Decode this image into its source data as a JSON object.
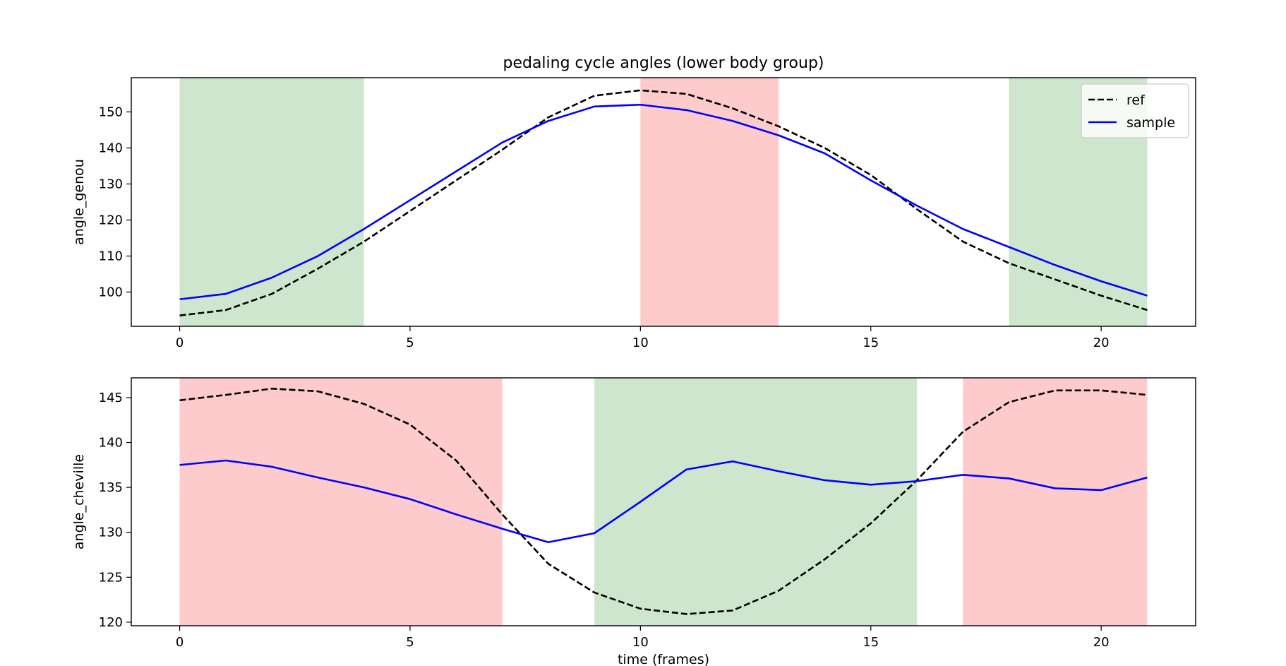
{
  "chart_data": [
    {
      "type": "line",
      "title": "pedaling cycle angles (lower body group)",
      "xlabel": "",
      "ylabel": "angle_genou",
      "xlim": [
        -1.05,
        22.05
      ],
      "ylim": [
        90.5,
        159.5
      ],
      "xticks": [
        0,
        5,
        10,
        15,
        20
      ],
      "yticks": [
        100,
        110,
        120,
        130,
        140,
        150
      ],
      "grid": false,
      "legend": "top-right",
      "highlight_bands": [
        {
          "from": 0,
          "to": 4,
          "color": "#cde6cd"
        },
        {
          "from": 10,
          "to": 13,
          "color": "#fdcbcb"
        },
        {
          "from": 18,
          "to": 21,
          "color": "#cde6cd"
        }
      ],
      "x": [
        0,
        1,
        2,
        3,
        4,
        5,
        6,
        7,
        8,
        9,
        10,
        11,
        12,
        13,
        14,
        15,
        16,
        17,
        18,
        19,
        20,
        21
      ],
      "series": [
        {
          "name": "ref",
          "color": "#000000",
          "dashed": true,
          "values": [
            93.5,
            95.0,
            99.5,
            106.5,
            114.0,
            122.5,
            131.0,
            139.5,
            148.5,
            154.5,
            156.0,
            155.0,
            151.0,
            146.0,
            140.0,
            132.5,
            123.0,
            114.0,
            108.0,
            103.5,
            99.0,
            95.0
          ]
        },
        {
          "name": "sample",
          "color": "#0000ff",
          "dashed": false,
          "values": [
            98.0,
            99.5,
            104.0,
            110.0,
            117.5,
            125.5,
            133.5,
            141.5,
            147.5,
            151.5,
            152.0,
            150.5,
            147.5,
            143.5,
            138.5,
            131.0,
            124.0,
            117.5,
            112.5,
            107.5,
            103.0,
            99.0
          ]
        }
      ]
    },
    {
      "type": "line",
      "title": "",
      "xlabel": "time (frames)",
      "ylabel": "angle_cheville",
      "xlim": [
        -1.05,
        22.05
      ],
      "ylim": [
        119.6,
        147.2
      ],
      "xticks": [
        0,
        5,
        10,
        15,
        20
      ],
      "yticks": [
        120,
        125,
        130,
        135,
        140,
        145
      ],
      "grid": false,
      "legend": "none",
      "highlight_bands": [
        {
          "from": 0,
          "to": 7,
          "color": "#fdcbcb"
        },
        {
          "from": 9,
          "to": 16,
          "color": "#cde6cd"
        },
        {
          "from": 17,
          "to": 21,
          "color": "#fdcbcb"
        }
      ],
      "x": [
        0,
        1,
        2,
        3,
        4,
        5,
        6,
        7,
        8,
        9,
        10,
        11,
        12,
        13,
        14,
        15,
        16,
        17,
        18,
        19,
        20,
        21
      ],
      "series": [
        {
          "name": "ref",
          "color": "#000000",
          "dashed": true,
          "values": [
            144.7,
            145.3,
            146.0,
            145.7,
            144.3,
            142.0,
            138.0,
            132.0,
            126.5,
            123.3,
            121.5,
            120.9,
            121.3,
            123.5,
            127.0,
            131.0,
            135.8,
            141.2,
            144.5,
            145.8,
            145.8,
            145.3
          ]
        },
        {
          "name": "sample",
          "color": "#0000ff",
          "dashed": false,
          "values": [
            137.5,
            138.0,
            137.3,
            136.1,
            135.0,
            133.7,
            132.0,
            130.4,
            128.9,
            129.9,
            133.4,
            137.0,
            137.9,
            136.8,
            135.8,
            135.3,
            135.7,
            136.4,
            136.0,
            134.9,
            134.7,
            136.1
          ]
        }
      ]
    }
  ]
}
